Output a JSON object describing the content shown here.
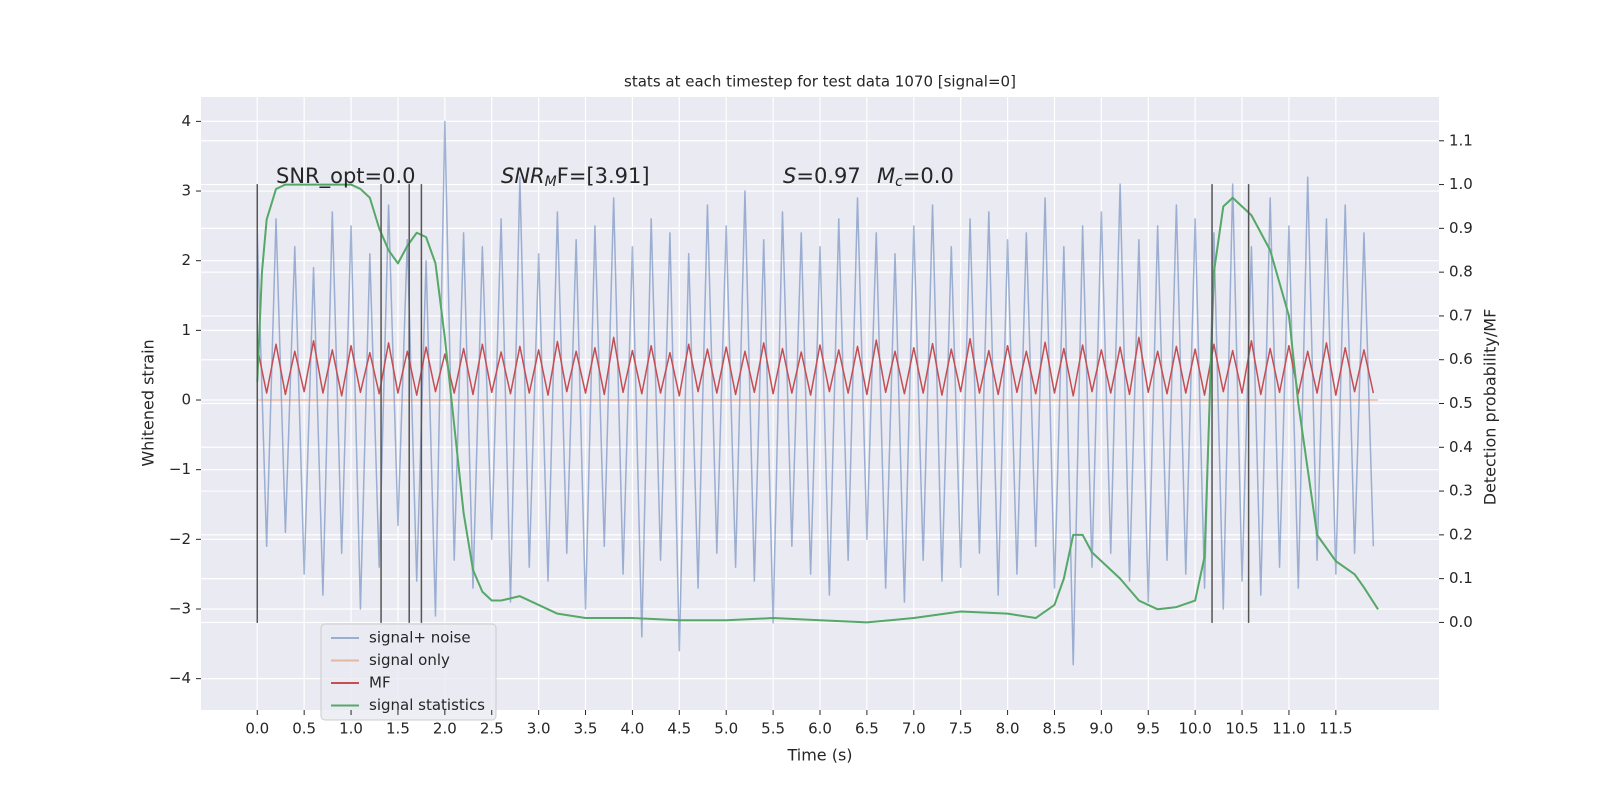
{
  "chart_data": {
    "type": "line",
    "title": "stats at each timestep for test data 1070 [signal=0]",
    "x_label": "Time (s)",
    "y_label": "Whitened strain",
    "y2_label": "Detection probability/MF",
    "xlim": [
      -0.6,
      12.6
    ],
    "ylim": [
      -4.45,
      4.35
    ],
    "y2lim": [
      -0.2,
      1.2
    ],
    "grid": true,
    "xticks": [
      {
        "value": 0,
        "label": "0.0"
      },
      {
        "value": 0.5,
        "label": "0.5"
      },
      {
        "value": 1,
        "label": "1.0"
      },
      {
        "value": 1.5,
        "label": "1.5"
      },
      {
        "value": 2,
        "label": "2.0"
      },
      {
        "value": 2.5,
        "label": "2.5"
      },
      {
        "value": 3,
        "label": "3.0"
      },
      {
        "value": 3.5,
        "label": "3.5"
      },
      {
        "value": 4,
        "label": "4.0"
      },
      {
        "value": 4.5,
        "label": "4.5"
      },
      {
        "value": 5,
        "label": "5.0"
      },
      {
        "value": 5.5,
        "label": "5.5"
      },
      {
        "value": 6,
        "label": "6.0"
      },
      {
        "value": 6.5,
        "label": "6.5"
      },
      {
        "value": 7,
        "label": "7.0"
      },
      {
        "value": 7.5,
        "label": "7.5"
      },
      {
        "value": 8,
        "label": "8.0"
      },
      {
        "value": 8.5,
        "label": "8.5"
      },
      {
        "value": 9,
        "label": "9.0"
      },
      {
        "value": 9.5,
        "label": "9.5"
      },
      {
        "value": 10,
        "label": "10.0"
      },
      {
        "value": 10.5,
        "label": "10.5"
      },
      {
        "value": 11,
        "label": "11.0"
      },
      {
        "value": 11.5,
        "label": "11.5"
      }
    ],
    "yticks": [
      {
        "value": -4,
        "label": "−4"
      },
      {
        "value": -3,
        "label": "−3"
      },
      {
        "value": -2,
        "label": "−2"
      },
      {
        "value": -1,
        "label": "−1"
      },
      0,
      1,
      2,
      3,
      4
    ],
    "y2ticks": [
      {
        "value": 0,
        "label": "0.0"
      },
      {
        "value": 0.1,
        "label": "0.1"
      },
      {
        "value": 0.2,
        "label": "0.2"
      },
      {
        "value": 0.3,
        "label": "0.3"
      },
      {
        "value": 0.4,
        "label": "0.4"
      },
      {
        "value": 0.5,
        "label": "0.5"
      },
      {
        "value": 0.6,
        "label": "0.6"
      },
      {
        "value": 0.7,
        "label": "0.7"
      },
      {
        "value": 0.8,
        "label": "0.8"
      },
      {
        "value": 0.9,
        "label": "0.9"
      },
      {
        "value": 1,
        "label": "1.0"
      },
      {
        "value": 1.1,
        "label": "1.1"
      }
    ],
    "x": [
      0,
      0.1,
      0.2,
      0.3,
      0.4,
      0.5,
      0.6,
      0.7,
      0.8,
      0.9,
      1,
      1.1,
      1.2,
      1.3,
      1.4,
      1.5,
      1.6,
      1.7,
      1.8,
      1.9,
      2,
      2.1,
      2.2,
      2.3,
      2.4,
      2.5,
      2.6,
      2.7,
      2.8,
      2.9,
      3,
      3.1,
      3.2,
      3.3,
      3.4,
      3.5,
      3.6,
      3.7,
      3.8,
      3.9,
      4,
      4.1,
      4.2,
      4.3,
      4.4,
      4.5,
      4.6,
      4.7,
      4.8,
      4.9,
      5,
      5.1,
      5.2,
      5.3,
      5.4,
      5.5,
      5.6,
      5.7,
      5.8,
      5.9,
      6,
      6.1,
      6.2,
      6.3,
      6.4,
      6.5,
      6.6,
      6.7,
      6.8,
      6.9,
      7,
      7.1,
      7.2,
      7.3,
      7.4,
      7.5,
      7.6,
      7.7,
      7.8,
      7.9,
      8,
      8.1,
      8.2,
      8.3,
      8.4,
      8.5,
      8.6,
      8.7,
      8.8,
      8.9,
      9,
      9.1,
      9.2,
      9.3,
      9.4,
      9.5,
      9.6,
      9.7,
      9.8,
      9.9,
      10,
      10.1,
      10.2,
      10.3,
      10.4,
      10.5,
      10.6,
      10.7,
      10.8,
      10.9,
      11,
      11.1,
      11.2,
      11.3,
      11.4,
      11.5,
      11.6,
      11.7,
      11.8,
      11.9
    ],
    "series": [
      {
        "name": "signal+ noise",
        "color": "#4c72b0",
        "alpha": 0.5,
        "values": [
          2.4,
          -2.1,
          2.6,
          -1.9,
          2.2,
          -2.5,
          1.9,
          -2.8,
          2.7,
          -2.2,
          2.5,
          -3.0,
          2.1,
          -2.4,
          2.8,
          -1.8,
          2.3,
          -2.6,
          2.0,
          -3.1,
          4.0,
          -2.3,
          2.4,
          -2.7,
          2.2,
          -2.0,
          2.6,
          -2.9,
          3.2,
          -2.4,
          2.1,
          -2.6,
          2.7,
          -2.2,
          2.3,
          -3.0,
          2.5,
          -2.1,
          2.9,
          -2.5,
          2.2,
          -3.4,
          2.6,
          -2.3,
          2.4,
          -3.6,
          2.1,
          -2.7,
          2.8,
          -2.2,
          2.5,
          -2.4,
          3.0,
          -2.6,
          2.3,
          -3.2,
          2.7,
          -2.1,
          2.4,
          -2.5,
          2.2,
          -2.8,
          2.6,
          -2.3,
          2.9,
          -2.0,
          2.4,
          -2.7,
          2.1,
          -2.9,
          2.5,
          -2.3,
          2.8,
          -2.6,
          2.2,
          -2.4,
          2.6,
          -2.2,
          2.7,
          -2.8,
          2.3,
          -2.5,
          2.4,
          -2.1,
          2.9,
          -2.7,
          2.2,
          -3.8,
          2.5,
          -2.4,
          2.7,
          -2.2,
          3.1,
          -2.6,
          2.3,
          -2.9,
          2.5,
          -2.3,
          2.8,
          -2.5,
          2.6,
          -2.7,
          2.4,
          -3.0,
          3.1,
          -2.6,
          2.2,
          -2.8,
          2.9,
          -2.4,
          2.5,
          -2.7,
          3.2,
          -2.3,
          2.6,
          -2.5,
          2.8,
          -2.2,
          2.4,
          -2.1
        ]
      },
      {
        "name": "signal only",
        "color": "#dd8452",
        "alpha": 0.5,
        "x": [
          0,
          11.95
        ],
        "values": [
          0,
          0
        ]
      },
      {
        "name": "MF",
        "color": "#c44e52",
        "alpha": 1,
        "values": [
          0.75,
          0.1,
          0.8,
          0.08,
          0.7,
          0.12,
          0.85,
          0.1,
          0.72,
          0.06,
          0.78,
          0.11,
          0.68,
          0.09,
          0.82,
          0.1,
          0.7,
          0.07,
          0.76,
          0.12,
          0.66,
          0.1,
          0.74,
          0.08,
          0.8,
          0.11,
          0.69,
          0.09,
          0.77,
          0.1,
          0.72,
          0.07,
          0.84,
          0.12,
          0.7,
          0.1,
          0.75,
          0.08,
          0.9,
          0.11,
          0.71,
          0.09,
          0.78,
          0.1,
          0.68,
          0.06,
          0.8,
          0.12,
          0.73,
          0.1,
          0.76,
          0.08,
          0.7,
          0.11,
          0.82,
          0.09,
          0.74,
          0.1,
          0.69,
          0.07,
          0.79,
          0.12,
          0.72,
          0.1,
          0.77,
          0.08,
          0.86,
          0.11,
          0.7,
          0.09,
          0.75,
          0.1,
          0.81,
          0.07,
          0.73,
          0.12,
          0.88,
          0.1,
          0.71,
          0.08,
          0.78,
          0.11,
          0.7,
          0.09,
          0.83,
          0.1,
          0.74,
          0.06,
          0.79,
          0.12,
          0.72,
          0.1,
          0.76,
          0.08,
          0.9,
          0.11,
          0.7,
          0.09,
          0.77,
          0.1,
          0.73,
          0.07,
          0.8,
          0.12,
          0.71,
          0.1,
          0.85,
          0.08,
          0.74,
          0.11,
          0.78,
          0.09,
          0.7,
          0.1,
          0.82,
          0.07,
          0.75,
          0.12,
          0.72,
          0.1
        ]
      },
      {
        "name": "signal statistics",
        "color": "#55a868",
        "alpha": 1,
        "axis": "y2",
        "x": [
          0,
          0.05,
          0.1,
          0.2,
          0.3,
          0.5,
          0.8,
          1,
          1.1,
          1.2,
          1.3,
          1.4,
          1.5,
          1.6,
          1.7,
          1.8,
          1.9,
          2,
          2.1,
          2.2,
          2.3,
          2.4,
          2.5,
          2.6,
          2.8,
          3,
          3.2,
          3.5,
          4,
          4.5,
          5,
          5.5,
          6,
          6.5,
          7,
          7.5,
          8,
          8.3,
          8.5,
          8.6,
          8.7,
          8.8,
          8.9,
          9,
          9.2,
          9.4,
          9.6,
          9.8,
          10,
          10.1,
          10.2,
          10.3,
          10.4,
          10.6,
          10.8,
          11,
          11.1,
          11.2,
          11.3,
          11.5,
          11.7,
          11.8,
          11.95
        ],
        "values": [
          0.55,
          0.8,
          0.92,
          0.99,
          1,
          1,
          1,
          1,
          0.99,
          0.97,
          0.9,
          0.85,
          0.82,
          0.86,
          0.89,
          0.88,
          0.82,
          0.65,
          0.45,
          0.25,
          0.12,
          0.07,
          0.05,
          0.05,
          0.06,
          0.04,
          0.02,
          0.01,
          0.01,
          0.005,
          0.005,
          0.01,
          0.005,
          0,
          0.01,
          0.025,
          0.02,
          0.01,
          0.04,
          0.1,
          0.2,
          0.2,
          0.16,
          0.14,
          0.1,
          0.05,
          0.03,
          0.035,
          0.05,
          0.15,
          0.8,
          0.95,
          0.97,
          0.93,
          0.85,
          0.7,
          0.5,
          0.35,
          0.2,
          0.14,
          0.11,
          0.08,
          0.03
        ]
      }
    ],
    "vlines": {
      "x": [
        0,
        1.32,
        1.62,
        1.75,
        10.18,
        10.57
      ],
      "ymin": -3.2,
      "ymax": 3.1,
      "color": "#555555"
    },
    "annotations": [
      {
        "text": "SNR_opt=0.0"
      },
      {
        "main": "SNR",
        "sub": "M",
        "rest": "F=[3.91]"
      },
      {
        "main": "S",
        "rest": "=0.97"
      },
      {
        "main": "M",
        "sub": "c",
        "rest": "=0.0"
      }
    ]
  }
}
